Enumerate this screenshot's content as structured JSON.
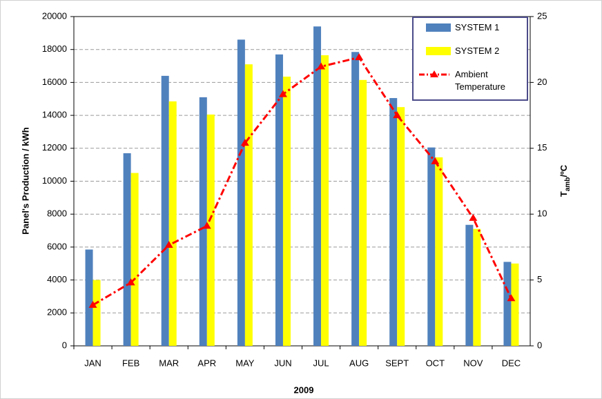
{
  "chart_data": {
    "type": "bar",
    "x_label": "2009",
    "y_label": "Panel's Production / kWh",
    "y2_label": {
      "main": "T",
      "sub": "amb",
      "rest": "/ºC"
    },
    "categories": [
      "JAN",
      "FEB",
      "MAR",
      "APR",
      "MAY",
      "JUN",
      "JUL",
      "AUG",
      "SEPT",
      "OCT",
      "NOV",
      "DEC"
    ],
    "series": [
      {
        "name": "SYSTEM 1",
        "color": "#4f81bd",
        "values": [
          5850,
          11700,
          16400,
          15100,
          18600,
          17700,
          19400,
          17850,
          15050,
          12050,
          7350,
          5100
        ]
      },
      {
        "name": "SYSTEM 2",
        "color": "#ffff00",
        "values": [
          4000,
          10500,
          14850,
          14050,
          17100,
          16350,
          17650,
          16150,
          14500,
          11450,
          7100,
          5000
        ]
      },
      {
        "name": "Ambient Temperature",
        "color": "#ff0000",
        "axis": "y2",
        "kind": "line",
        "values": [
          3.1,
          4.8,
          7.65,
          9.1,
          15.4,
          19.1,
          21.2,
          21.9,
          17.5,
          14.0,
          9.7,
          3.6
        ]
      }
    ],
    "ylim": [
      0,
      20000
    ],
    "yticks": [
      0,
      2000,
      4000,
      6000,
      8000,
      10000,
      12000,
      14000,
      16000,
      18000,
      20000
    ],
    "y2lim": [
      0,
      25
    ],
    "y2ticks": [
      0,
      5,
      10,
      15,
      20,
      25
    ],
    "grid": true
  }
}
